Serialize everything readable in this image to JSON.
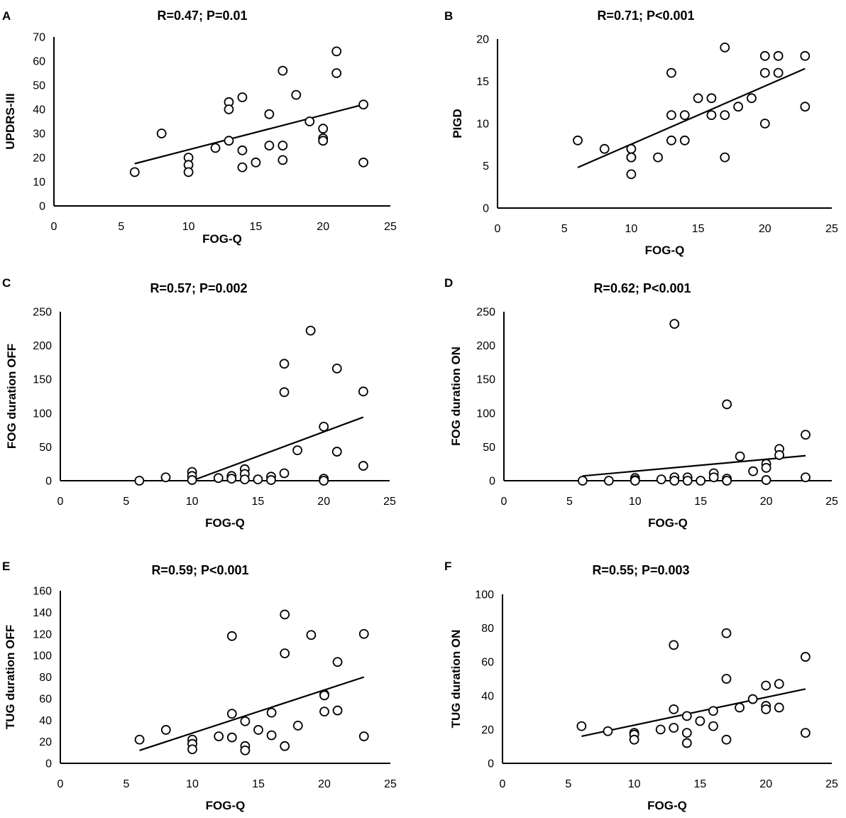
{
  "chart_data": [
    {
      "panel": "A",
      "type": "scatter",
      "title": "R=0.47; P=0.01",
      "xlabel": "FOG-Q",
      "ylabel": "UPDRS-III",
      "xlim": [
        0,
        25
      ],
      "ylim": [
        0,
        70
      ],
      "xticks": [
        0,
        5,
        10,
        15,
        20,
        25
      ],
      "yticks": [
        0,
        10,
        20,
        30,
        40,
        50,
        60,
        70
      ],
      "points": [
        [
          6,
          14
        ],
        [
          8,
          30
        ],
        [
          10,
          20
        ],
        [
          10,
          17
        ],
        [
          10,
          14
        ],
        [
          12,
          24
        ],
        [
          13,
          43
        ],
        [
          13,
          40
        ],
        [
          13,
          27
        ],
        [
          14,
          45
        ],
        [
          14,
          23
        ],
        [
          14,
          16
        ],
        [
          15,
          18
        ],
        [
          16,
          38
        ],
        [
          16,
          25
        ],
        [
          17,
          56
        ],
        [
          17,
          25
        ],
        [
          17,
          19
        ],
        [
          18,
          46
        ],
        [
          19,
          35
        ],
        [
          20,
          32
        ],
        [
          20,
          28
        ],
        [
          20,
          27
        ],
        [
          21,
          64
        ],
        [
          21,
          55
        ],
        [
          23,
          42
        ],
        [
          23,
          18
        ]
      ],
      "trendline": [
        [
          6,
          17.5
        ],
        [
          23,
          42
        ]
      ]
    },
    {
      "panel": "B",
      "type": "scatter",
      "title": "R=0.71; P<0.001",
      "xlabel": "FOG-Q",
      "ylabel": "PIGD",
      "xlim": [
        0,
        25
      ],
      "ylim": [
        0,
        20
      ],
      "xticks": [
        0,
        5,
        10,
        15,
        20,
        25
      ],
      "yticks": [
        0,
        5,
        10,
        15,
        20
      ],
      "points": [
        [
          6,
          8
        ],
        [
          8,
          7
        ],
        [
          10,
          7
        ],
        [
          10,
          6
        ],
        [
          10,
          6
        ],
        [
          10,
          4
        ],
        [
          12,
          6
        ],
        [
          13,
          16
        ],
        [
          13,
          11
        ],
        [
          13,
          8
        ],
        [
          14,
          11
        ],
        [
          14,
          8
        ],
        [
          15,
          13
        ],
        [
          16,
          13
        ],
        [
          16,
          11
        ],
        [
          17,
          19
        ],
        [
          17,
          11
        ],
        [
          17,
          6
        ],
        [
          18,
          12
        ],
        [
          19,
          13
        ],
        [
          20,
          18
        ],
        [
          20,
          16
        ],
        [
          20,
          10
        ],
        [
          21,
          18
        ],
        [
          21,
          16
        ],
        [
          23,
          18
        ],
        [
          23,
          12
        ]
      ],
      "trendline": [
        [
          6,
          4.8
        ],
        [
          23,
          16.5
        ]
      ]
    },
    {
      "panel": "C",
      "type": "scatter",
      "title": "R=0.57; P=0.002",
      "xlabel": "FOG-Q",
      "ylabel": "FOG duration OFF",
      "xlim": [
        0,
        25
      ],
      "ylim": [
        0,
        250
      ],
      "xticks": [
        0,
        5,
        10,
        15,
        20,
        25
      ],
      "yticks": [
        0,
        50,
        100,
        150,
        200,
        250
      ],
      "points": [
        [
          6,
          0
        ],
        [
          8,
          5
        ],
        [
          10,
          13
        ],
        [
          10,
          7
        ],
        [
          10,
          1
        ],
        [
          12,
          4
        ],
        [
          13,
          7
        ],
        [
          13,
          3
        ],
        [
          14,
          17
        ],
        [
          14,
          10
        ],
        [
          14,
          2
        ],
        [
          15,
          2
        ],
        [
          16,
          6
        ],
        [
          16,
          1
        ],
        [
          17,
          173
        ],
        [
          17,
          131
        ],
        [
          17,
          11
        ],
        [
          18,
          45
        ],
        [
          19,
          222
        ],
        [
          20,
          80
        ],
        [
          20,
          3
        ],
        [
          20,
          0
        ],
        [
          21,
          166
        ],
        [
          21,
          43
        ],
        [
          23,
          132
        ],
        [
          23,
          22
        ]
      ],
      "trendline": [
        [
          10,
          0
        ],
        [
          23,
          94
        ]
      ]
    },
    {
      "panel": "D",
      "type": "scatter",
      "title": "R=0.62; P<0.001",
      "xlabel": "FOG-Q",
      "ylabel": "FOG duration ON",
      "xlim": [
        0,
        25
      ],
      "ylim": [
        0,
        250
      ],
      "xticks": [
        0,
        5,
        10,
        15,
        20,
        25
      ],
      "yticks": [
        0,
        50,
        100,
        150,
        200,
        250
      ],
      "points": [
        [
          6,
          0
        ],
        [
          8,
          0
        ],
        [
          10,
          4
        ],
        [
          10,
          1
        ],
        [
          10,
          0
        ],
        [
          12,
          2
        ],
        [
          13,
          232
        ],
        [
          13,
          5
        ],
        [
          13,
          0
        ],
        [
          14,
          5
        ],
        [
          14,
          0
        ],
        [
          15,
          0
        ],
        [
          16,
          11
        ],
        [
          16,
          5
        ],
        [
          17,
          113
        ],
        [
          17,
          3
        ],
        [
          17,
          0
        ],
        [
          18,
          36
        ],
        [
          19,
          14
        ],
        [
          20,
          25
        ],
        [
          20,
          19
        ],
        [
          20,
          1
        ],
        [
          21,
          47
        ],
        [
          21,
          38
        ],
        [
          23,
          68
        ],
        [
          23,
          5
        ]
      ],
      "trendline": [
        [
          6,
          7
        ],
        [
          23,
          37
        ]
      ]
    },
    {
      "panel": "E",
      "type": "scatter",
      "title": "R=0.59; P<0.001",
      "xlabel": "FOG-Q",
      "ylabel": "TUG duration OFF",
      "xlim": [
        0,
        25
      ],
      "ylim": [
        0,
        160
      ],
      "xticks": [
        0,
        5,
        10,
        15,
        20,
        25
      ],
      "yticks": [
        0,
        20,
        40,
        60,
        80,
        100,
        120,
        140,
        160
      ],
      "points": [
        [
          6,
          22
        ],
        [
          8,
          31
        ],
        [
          10,
          22
        ],
        [
          10,
          18
        ],
        [
          10,
          13
        ],
        [
          12,
          25
        ],
        [
          13,
          118
        ],
        [
          13,
          46
        ],
        [
          13,
          24
        ],
        [
          14,
          39
        ],
        [
          14,
          16
        ],
        [
          14,
          12
        ],
        [
          15,
          31
        ],
        [
          16,
          47
        ],
        [
          16,
          26
        ],
        [
          17,
          138
        ],
        [
          17,
          102
        ],
        [
          17,
          16
        ],
        [
          18,
          35
        ],
        [
          19,
          119
        ],
        [
          20,
          64
        ],
        [
          20,
          63
        ],
        [
          20,
          48
        ],
        [
          21,
          94
        ],
        [
          21,
          49
        ],
        [
          23,
          120
        ],
        [
          23,
          25
        ]
      ],
      "trendline": [
        [
          6,
          12
        ],
        [
          23,
          80
        ]
      ]
    },
    {
      "panel": "F",
      "type": "scatter",
      "title": "R=0.55; P=0.003",
      "xlabel": "FOG-Q",
      "ylabel": "TUG duration ON",
      "xlim": [
        0,
        25
      ],
      "ylim": [
        0,
        100
      ],
      "xticks": [
        0,
        5,
        10,
        15,
        20,
        25
      ],
      "yticks": [
        0,
        20,
        40,
        60,
        80,
        100
      ],
      "points": [
        [
          6,
          22
        ],
        [
          8,
          19
        ],
        [
          10,
          18
        ],
        [
          10,
          17
        ],
        [
          10,
          14
        ],
        [
          12,
          20
        ],
        [
          13,
          70
        ],
        [
          13,
          32
        ],
        [
          13,
          21
        ],
        [
          14,
          28
        ],
        [
          14,
          18
        ],
        [
          14,
          12
        ],
        [
          15,
          25
        ],
        [
          16,
          31
        ],
        [
          16,
          22
        ],
        [
          17,
          77
        ],
        [
          17,
          50
        ],
        [
          17,
          14
        ],
        [
          18,
          33
        ],
        [
          19,
          38
        ],
        [
          20,
          46
        ],
        [
          20,
          34
        ],
        [
          20,
          32
        ],
        [
          21,
          47
        ],
        [
          21,
          33
        ],
        [
          23,
          63
        ],
        [
          23,
          18
        ]
      ],
      "trendline": [
        [
          6,
          16
        ],
        [
          23,
          44
        ]
      ]
    }
  ]
}
